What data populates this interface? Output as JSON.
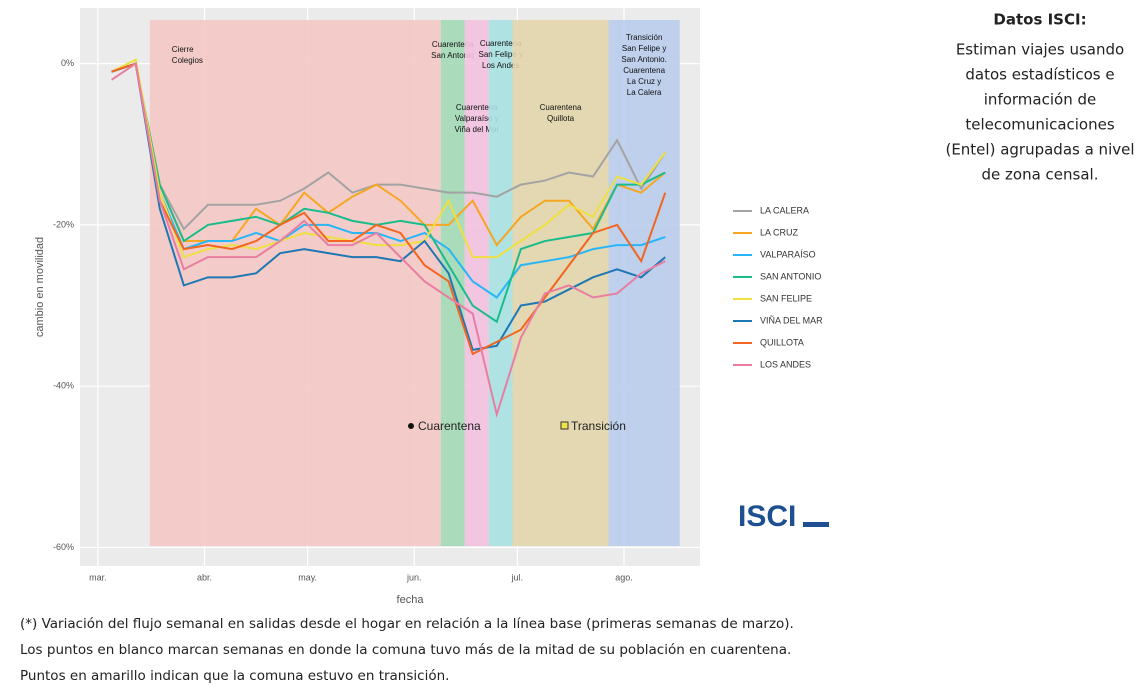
{
  "chart_data": {
    "type": "line",
    "x": [
      4,
      11,
      18,
      25,
      32,
      39,
      46,
      53,
      60,
      67,
      74,
      81,
      88,
      95,
      102,
      109,
      116,
      123,
      130,
      137,
      144,
      151,
      158,
      165
    ],
    "xlim": [
      -5.2,
      175.1
    ],
    "xticks": [
      {
        "value": 0,
        "label": "mar."
      },
      {
        "value": 31,
        "label": "abr."
      },
      {
        "value": 61,
        "label": "may."
      },
      {
        "value": 92,
        "label": "jun."
      },
      {
        "value": 122,
        "label": "jul."
      },
      {
        "value": 153,
        "label": "ago."
      }
    ],
    "ylim": [
      -62.3,
      6.9
    ],
    "yticks": [
      {
        "value": 0,
        "label": "0%"
      },
      {
        "value": -20,
        "label": "-20%"
      },
      {
        "value": -40,
        "label": "-40%"
      },
      {
        "value": -60,
        "label": "-60%"
      }
    ],
    "x_label": "fecha",
    "y_label": "cambio en movilidad",
    "grid": true,
    "series": [
      {
        "name": "LA CALERA",
        "color": "#a3a3a3",
        "values": [
          -1,
          0,
          -15,
          -20.5,
          -17.5,
          -17.5,
          -17.5,
          -17,
          -15.5,
          -13.5,
          -16,
          -15,
          -15,
          -15.5,
          -16,
          -16,
          -16.5,
          -15,
          -14.5,
          -13.5,
          -14,
          -9.5,
          -15.5,
          -11
        ]
      },
      {
        "name": "LA CRUZ",
        "color": "#f5a623",
        "values": [
          -1,
          0,
          -15,
          -22,
          -22,
          -22,
          -18,
          -20,
          -16,
          -18.5,
          -16.5,
          -15,
          -17,
          -20,
          -20,
          -17,
          -22.5,
          -19,
          -17,
          -17,
          -20.5,
          -15,
          -16,
          -13.5
        ]
      },
      {
        "name": "VALPARAÍSO",
        "color": "#29b6f6",
        "values": [
          -1,
          0,
          -16,
          -23,
          -22,
          -22,
          -21,
          -22,
          -20,
          -20,
          -21,
          -21,
          -22,
          -21,
          -23,
          -27,
          -29,
          -25,
          -24.5,
          -24,
          -23,
          -22.5,
          -22.5,
          -21.5
        ]
      },
      {
        "name": "SAN ANTONIO",
        "color": "#1abc8c",
        "values": [
          -1,
          0,
          -15,
          -22,
          -20,
          -19.5,
          -19,
          -20,
          -18,
          -18.5,
          -19.5,
          -20,
          -19.5,
          -20,
          -25,
          -30,
          -32,
          -23,
          -22,
          -21.5,
          -21,
          -15,
          -15,
          -13.5
        ]
      },
      {
        "name": "SAN FELIPE",
        "color": "#eee040",
        "values": [
          -1,
          0.5,
          -16,
          -24,
          -23,
          -22.5,
          -23,
          -22,
          -21,
          -21.5,
          -22,
          -22.5,
          -22.5,
          -22,
          -17,
          -24,
          -24,
          -22,
          -20,
          -17.5,
          -19,
          -14,
          -15,
          -11
        ]
      },
      {
        "name": "VIÑA DEL MAR",
        "color": "#1f77b4",
        "values": [
          -1,
          0,
          -18,
          -27.5,
          -26.5,
          -26.5,
          -26,
          -23.5,
          -23,
          -23.5,
          -24,
          -24,
          -24.5,
          -22,
          -26,
          -35.5,
          -35,
          -30,
          -29.5,
          -28,
          -26.5,
          -25.5,
          -26.5,
          -24
        ]
      },
      {
        "name": "QUILLOTA",
        "color": "#f26522",
        "values": [
          -1,
          0,
          -17,
          -23,
          -22.5,
          -23,
          -22,
          -20,
          -18.5,
          -22,
          -22,
          -20,
          -21,
          -25,
          -27,
          -36,
          -34.5,
          -33,
          -29,
          -25,
          -21,
          -20,
          -24.5,
          -16
        ]
      },
      {
        "name": "LOS ANDES",
        "color": "#e87ea1",
        "values": [
          -2,
          0,
          -17,
          -25.5,
          -24,
          -24,
          -24,
          -22,
          -19.5,
          -22.5,
          -22.5,
          -21,
          -24,
          -27,
          -29,
          -31,
          -43.5,
          -34,
          -28.5,
          -27.5,
          -29,
          -28.5,
          -26,
          -24.5
        ]
      }
    ],
    "periods": [
      {
        "label": [
          "Cierre",
          "Colegios"
        ],
        "start": 15.1,
        "end": 99.7,
        "color": "#f4c9c5"
      },
      {
        "label": [
          "Cuarentena",
          "San Antonio"
        ],
        "start": 99.7,
        "end": 106.7,
        "color": "#a3d9b5"
      },
      {
        "label": [
          "Cuarentena",
          "Valparaíso y",
          "Viña del Mar"
        ],
        "start": 106.7,
        "end": 113.7,
        "color": "#f3c2e0"
      },
      {
        "label": [
          "Cuarentena",
          "San Felipe y",
          "Los Andes"
        ],
        "start": 113.7,
        "end": 120.6,
        "color": "#a9e1e2"
      },
      {
        "label": [
          "Cuarentena",
          "Quillota"
        ],
        "start": 120.6,
        "end": 148.5,
        "color": "#e2d6ab"
      },
      {
        "label": [
          "Transición",
          "San Felipe y",
          "San Antonio.",
          "Cuarentena",
          "La Cruz y",
          "La Calera"
        ],
        "start": 148.5,
        "end": 169.2,
        "color": "#b9cdec"
      }
    ],
    "annotations": [
      "Cuarentena",
      "Transición"
    ]
  },
  "side_note": {
    "title": "Datos ISCI:",
    "lines": [
      "Estiman viajes usando",
      "datos estadísticos e",
      "información de",
      "telecomunicaciones",
      "(Entel) agrupadas a nivel",
      "de zona censal."
    ]
  },
  "logo": "ISCI",
  "footnote": [
    "(*) Variación del flujo semanal en salidas desde el hogar en relación a la línea base (primeras semanas de marzo).",
    "Los puntos en blanco marcan semanas en donde la comuna tuvo más de la mitad de su población en cuarentena.",
    "Puntos en amarillo indican que la comuna estuvo en transición."
  ]
}
